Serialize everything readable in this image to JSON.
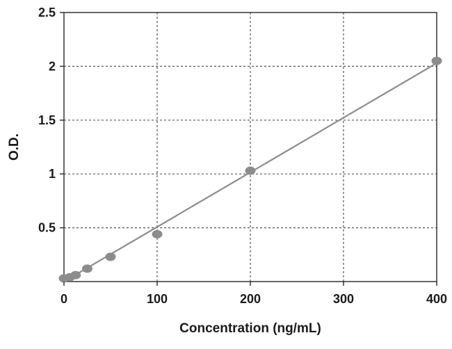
{
  "chart_data": {
    "type": "scatter",
    "title": "",
    "xlabel": "Concentration (ng/mL)",
    "ylabel": "O.D.",
    "xlim": [
      0,
      400
    ],
    "ylim": [
      0,
      2.5
    ],
    "x_ticks": [
      0,
      100,
      200,
      300,
      400
    ],
    "y_ticks": [
      0.5,
      1,
      1.5,
      2,
      2.5
    ],
    "x_tick_labels": [
      "0",
      "100",
      "200",
      "300",
      "400"
    ],
    "y_tick_labels": [
      "0.5",
      "1",
      "1.5",
      "2",
      "2.5"
    ],
    "grid": true,
    "grid_style": "dashed",
    "marker_color": "#8c8c8c",
    "line_color": "#8c8c8c",
    "series": [
      {
        "points": [
          {
            "x": 0,
            "y": 0.03
          },
          {
            "x": 6.25,
            "y": 0.04
          },
          {
            "x": 12.5,
            "y": 0.06
          },
          {
            "x": 25,
            "y": 0.12
          },
          {
            "x": 50,
            "y": 0.23
          },
          {
            "x": 100,
            "y": 0.44
          },
          {
            "x": 200,
            "y": 1.03
          },
          {
            "x": 400,
            "y": 2.05
          }
        ],
        "fit": {
          "type": "linear",
          "x_range": [
            0,
            400
          ],
          "y_at_start": 0.0,
          "y_at_end": 2.03
        }
      }
    ]
  }
}
